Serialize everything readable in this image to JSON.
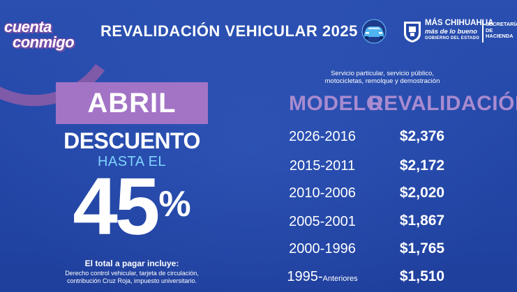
{
  "branding": {
    "campaign_line1": "cuenta",
    "campaign_line2": "conmigo",
    "title": "REVALIDACIÓN VEHICULAR 2025",
    "gov_line1": "MÁS CHIHUAHUA",
    "gov_line2": "más de lo bueno",
    "gov_line3": "GOBIERNO DEL ESTADO",
    "department_line1": "SECRETARÍA",
    "department_line2": "DE HACIENDA",
    "icons": [
      "car-icon",
      "state-seal-icon"
    ]
  },
  "promo": {
    "month": "ABRIL",
    "discount_label": "DESCUENTO",
    "up_to": "HASTA EL",
    "percent_value": "45",
    "percent_symbol": "%",
    "includes_title": "El total a pagar incluye:",
    "includes_line1": "Derecho control vehicular, tarjeta de circulación,",
    "includes_line2": "contribución Cruz Roja, impuesto universitario."
  },
  "table": {
    "note_line1": "Servicio particular, servicio público,",
    "note_line2": "motocicletas, remolque y demostración",
    "col_model": "MODELO",
    "col_price": "REVALIDACIÓN",
    "rows": [
      {
        "model": "2026-2016",
        "price": "$2,376"
      },
      {
        "model": "2015-2011",
        "price": "$2,172"
      },
      {
        "model": "2010-2006",
        "price": "$2,020"
      },
      {
        "model": "2005-2001",
        "price": "$1,867"
      },
      {
        "model": "2000-1996",
        "price": "$1,765"
      },
      {
        "model": "1995-",
        "model_suffix": "Anteriores",
        "price": "$1,510"
      }
    ]
  },
  "colors": {
    "background": "#2347a8",
    "accent_purple": "#a374c6",
    "header_purple": "#a98bd0",
    "accent_cyan": "#7fd3ff"
  }
}
